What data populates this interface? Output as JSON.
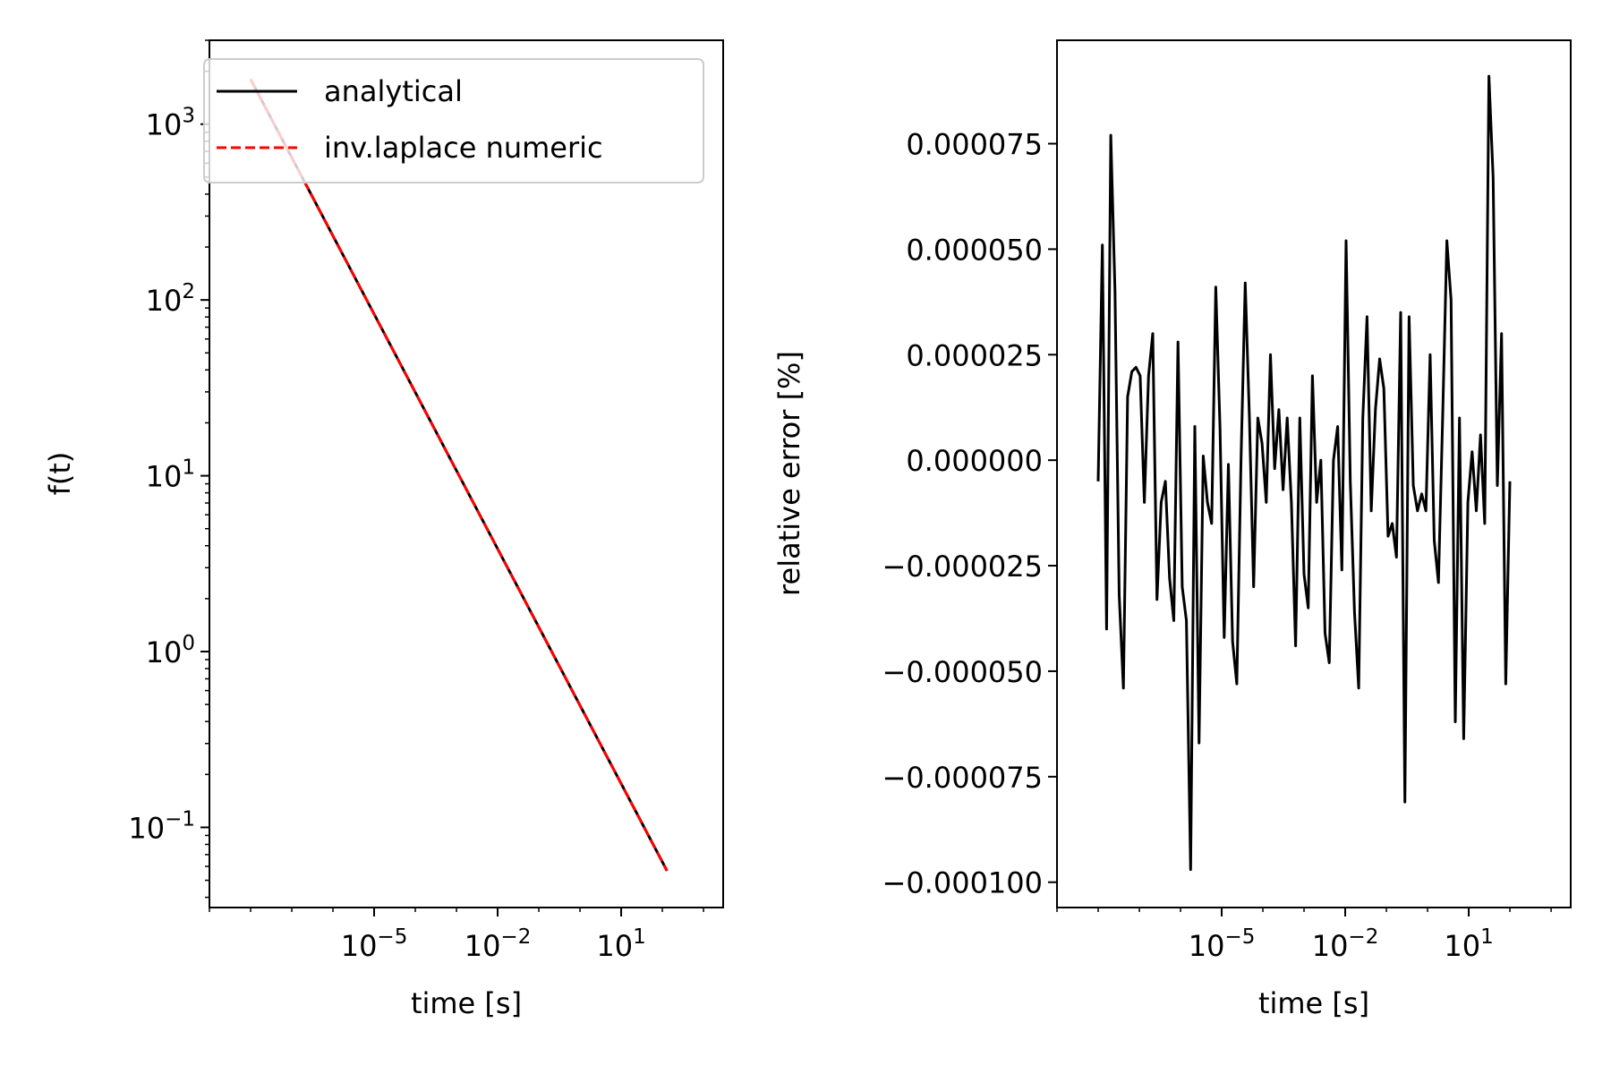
{
  "colors": {
    "analytical": "#000000",
    "numeric": "#ff0000",
    "error_line": "#000000",
    "axes": "#000000",
    "background": "#ffffff"
  },
  "chart_data": [
    {
      "type": "line",
      "xscale": "log",
      "yscale": "log",
      "xlabel": "time [s]",
      "ylabel": "f(t)",
      "xlim": [
        1e-09,
        3000
      ],
      "ylim": [
        0.035,
        3000
      ],
      "xticks": [
        {
          "base": "10",
          "exp": "−5",
          "value": 1e-05
        },
        {
          "base": "10",
          "exp": "−2",
          "value": 0.01
        },
        {
          "base": "10",
          "exp": "1",
          "value": 10
        }
      ],
      "yticks": [
        {
          "base": "10",
          "exp": "−1",
          "value": 0.1
        },
        {
          "base": "10",
          "exp": "0",
          "value": 1
        },
        {
          "base": "10",
          "exp": "1",
          "value": 10
        },
        {
          "base": "10",
          "exp": "2",
          "value": 100
        },
        {
          "base": "10",
          "exp": "3",
          "value": 1000
        }
      ],
      "grid": false,
      "legend_position": "upper-left",
      "series": [
        {
          "name": "analytical",
          "style": "solid",
          "color": "#000000",
          "x": [
            1e-08,
            1e-07,
            1e-06,
            1e-05,
            0.0001,
            0.001,
            0.01,
            0.1,
            1,
            10,
            100
          ],
          "y": [
            1800,
            566,
            179,
            56.6,
            17.9,
            5.66,
            1.79,
            0.566,
            0.179,
            0.0566,
            0.0566
          ]
        },
        {
          "name": "inv.laplace numeric",
          "style": "dashed",
          "color": "#ff0000",
          "x": [
            1e-08,
            1e-07,
            1e-06,
            1e-05,
            0.0001,
            0.001,
            0.01,
            0.1,
            1,
            10,
            100
          ],
          "y": [
            1800,
            566,
            179,
            56.6,
            17.9,
            5.66,
            1.79,
            0.566,
            0.179,
            0.0566,
            0.0566
          ]
        }
      ]
    },
    {
      "type": "line",
      "xscale": "log",
      "yscale": "linear",
      "xlabel": "time [s]",
      "ylabel": "relative error [%]",
      "xlim": [
        1e-09,
        3000
      ],
      "ylim": [
        -0.000106,
        9.95e-05
      ],
      "xticks": [
        {
          "base": "10",
          "exp": "−5",
          "value": 1e-05
        },
        {
          "base": "10",
          "exp": "−2",
          "value": 0.01
        },
        {
          "base": "10",
          "exp": "1",
          "value": 10
        }
      ],
      "yticks": [
        {
          "label": "0.000075",
          "value": 7.5e-05
        },
        {
          "label": "0.000050",
          "value": 5e-05
        },
        {
          "label": "0.000025",
          "value": 2.5e-05
        },
        {
          "label": "0.000000",
          "value": 0
        },
        {
          "label": "−0.000025",
          "value": -2.5e-05
        },
        {
          "label": "−0.000050",
          "value": -5e-05
        },
        {
          "label": "−0.000075",
          "value": -7.5e-05
        },
        {
          "label": "−0.000100",
          "value": -0.0001
        }
      ],
      "grid": false,
      "series": [
        {
          "color": "#000000",
          "style": "solid",
          "logx_start": -8,
          "logx_end": 2,
          "values": [
            -5e-06,
            5.1e-05,
            -4e-05,
            7.7e-05,
            4e-05,
            -3.2e-05,
            -5.4e-05,
            1.5e-05,
            2.1e-05,
            2.2e-05,
            2e-05,
            -1e-05,
            2e-05,
            3e-05,
            -3.3e-05,
            -1e-05,
            -5e-06,
            -2.8e-05,
            -3.8e-05,
            2.8e-05,
            -3e-05,
            -3.8e-05,
            -9.7e-05,
            8e-06,
            -6.7e-05,
            1e-06,
            -1e-05,
            -1.5e-05,
            4.1e-05,
            8e-06,
            -4.2e-05,
            -1e-06,
            -4.3e-05,
            -5.3e-05,
            0.0,
            4.2e-05,
            1e-05,
            -3e-05,
            1e-05,
            4e-06,
            -1e-05,
            2.5e-05,
            -2e-06,
            1.2e-05,
            -7e-06,
            1e-05,
            -1e-05,
            -4.4e-05,
            1e-05,
            -2.7e-05,
            -3.5e-05,
            2e-05,
            -1e-05,
            0.0,
            -4.1e-05,
            -4.8e-05,
            0.0,
            8e-06,
            -2.6e-05,
            5.2e-05,
            -5e-06,
            -3.6e-05,
            -5.4e-05,
            1e-05,
            3.4e-05,
            -1.2e-05,
            1.2e-05,
            2.4e-05,
            1.7e-05,
            -1.8e-05,
            -1.5e-05,
            -2.3e-05,
            3.5e-05,
            -8.1e-05,
            3.4e-05,
            -6e-06,
            -1.2e-05,
            -8e-06,
            -1.2e-05,
            2.5e-05,
            -1.9e-05,
            -2.9e-05,
            1e-05,
            5.2e-05,
            3.8e-05,
            -6.2e-05,
            1e-05,
            -6.6e-05,
            -1e-05,
            2e-06,
            -1.2e-05,
            6e-06,
            -1.5e-05,
            9.1e-05,
            6.7e-05,
            -6e-06,
            3e-05,
            -5.3e-05,
            -5e-06
          ]
        }
      ]
    }
  ]
}
